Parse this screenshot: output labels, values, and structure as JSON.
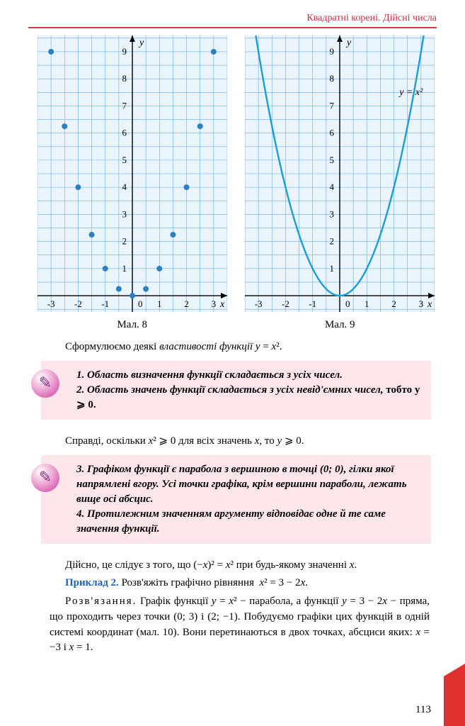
{
  "header": {
    "title": "Квадратні корені. Дійсні числа",
    "title_color": "#c83048"
  },
  "charts": {
    "grid_color": "#6caedf",
    "bg_color": "#eaf4fc",
    "axis_color": "#000000",
    "point_color": "#2d7fc4",
    "curve_color": "#1b9ed8",
    "left": {
      "caption": "Мал. 8",
      "x_ticks": [
        -3,
        -2,
        -1,
        0,
        1,
        2,
        3
      ],
      "y_ticks": [
        1,
        2,
        3,
        4,
        5,
        6,
        7,
        8,
        9
      ],
      "x_label": "x",
      "y_label": "y",
      "points": [
        [
          -3,
          9
        ],
        [
          -2.5,
          6.25
        ],
        [
          -2,
          4
        ],
        [
          -1.5,
          2.25
        ],
        [
          -1,
          1
        ],
        [
          -0.5,
          0.25
        ],
        [
          0,
          0
        ],
        [
          0.5,
          0.25
        ],
        [
          1,
          1
        ],
        [
          1.5,
          2.25
        ],
        [
          2,
          4
        ],
        [
          2.5,
          6.25
        ],
        [
          3,
          9
        ]
      ]
    },
    "right": {
      "caption": "Мал. 9",
      "x_ticks": [
        -3,
        -2,
        -1,
        0,
        1,
        2,
        3
      ],
      "y_ticks": [
        1,
        2,
        3,
        4,
        5,
        6,
        7,
        8,
        9
      ],
      "x_label": "x",
      "y_label": "y",
      "equation_label": "y = x²",
      "curve": "y=x^2",
      "x_range": [
        -3.1,
        3.1
      ]
    }
  },
  "text": {
    "intro": "Сформулюємо деякі властивості функції y = x².",
    "prop1_1": "1. Область визначення функції складається з усіх чисел.",
    "prop1_2": "2. Область значень функції складається з усіх невід'ємних чисел,",
    "prop1_2b": " тобто y ⩾ 0.",
    "mid": "Справді, оскільки x² ⩾ 0 для всіх значень x, то y ⩾ 0.",
    "prop2_3": "3. Графіком функції є парабола з вершиною в точці (0; 0), гілки якої напрямлені вгору. Усі точки графіка, крім вершини параболи, лежать вище осі абсцис.",
    "prop2_4": "4. Протилежним значенням аргументу відповідає одне й те саме значення функції.",
    "after_prop": "Дійсно, це слідує з того, що (−x)² = x² при будь-якому значенні x.",
    "example_label": "Приклад 2.",
    "example_task": " Розв'яжіть графічно рівняння  x² = 3 − 2x.",
    "solution_label": "Р о з в' я з а н н я.",
    "solution": " Графік функції y = x² − парабола, а функції y = 3 − 2x − пряма, що проходить через точки (0; 3) і (2; −1). Побудуємо графіки цих функцій в одній системі координат (мал. 10). Вони перетинаються в двох точках, абсциси яких: x = −3 і x = 1."
  },
  "page_number": "113"
}
